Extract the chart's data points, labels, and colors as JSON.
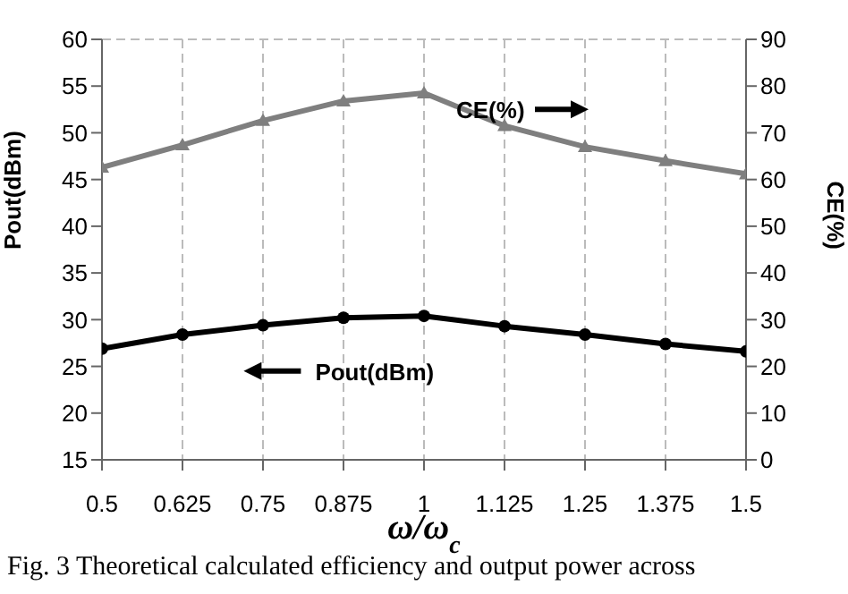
{
  "chart_data": {
    "type": "line",
    "xlabel": "ω/ω$_{c}$",
    "ylabel": "Pout(dBm)",
    "y2label": "CE(%)",
    "x": [
      0.5,
      0.625,
      0.75,
      0.875,
      1,
      1.125,
      1.25,
      1.375,
      1.5
    ],
    "xlim": [
      0.5,
      1.5
    ],
    "xticks": [
      0.5,
      0.625,
      0.75,
      0.875,
      1,
      1.125,
      1.25,
      1.375,
      1.5
    ],
    "ylim": [
      15,
      60
    ],
    "yticks": [
      15,
      20,
      25,
      30,
      35,
      40,
      45,
      50,
      55,
      60
    ],
    "y2lim": [
      0,
      90
    ],
    "y2ticks": [
      0,
      10,
      20,
      30,
      40,
      50,
      60,
      70,
      80,
      90
    ],
    "series": [
      {
        "color": "#7f7f7f",
        "axis": "y2",
        "marker": "triangle",
        "values": [
          62.6,
          67.4,
          72.6,
          76.8,
          78.5,
          71.5,
          67,
          64,
          61.2
        ]
      },
      {
        "color": "#000000",
        "marker": "circle",
        "values": [
          26.9,
          28.4,
          29.4,
          30.2,
          30.4,
          29.3,
          28.4,
          27.4,
          26.6
        ]
      }
    ],
    "grid": true,
    "annotations": [
      "CE(%)",
      "Pout(dBm)",
      "Fig. 3 Theoretical calculated efficiency and output power across"
    ]
  }
}
